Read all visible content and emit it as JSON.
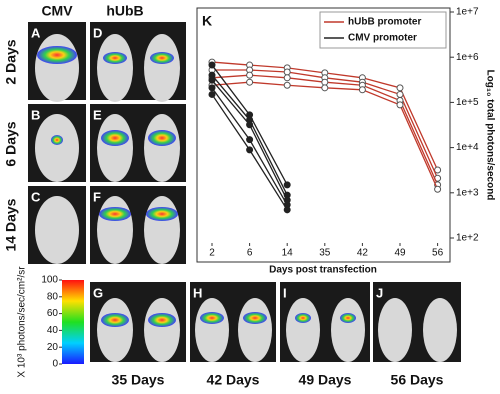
{
  "columns": [
    "CMV",
    "hUbB"
  ],
  "rows": [
    "2 Days",
    "6 Days",
    "14 Days"
  ],
  "panels": [
    "A",
    "D",
    "B",
    "E",
    "C",
    "F",
    "G",
    "H",
    "I",
    "J"
  ],
  "bottom_labels": [
    "35 Days",
    "42 Days",
    "49 Days",
    "56 Days"
  ],
  "colorbar": {
    "ticks": [
      100,
      80,
      60,
      40,
      20,
      0
    ],
    "label": "X 10³ photons/sec/cm²/sr"
  },
  "chart_data": {
    "type": "line",
    "panel": "K",
    "x_label": "Days post transfection",
    "y_label": "Log₁₀ total photons/second",
    "categories": [
      "2",
      "6",
      "14",
      "35",
      "42",
      "49",
      "56"
    ],
    "log_scale": true,
    "ylim": [
      100,
      10000000
    ],
    "yticks": [
      {
        "value": 10000000,
        "label": "1e+7"
      },
      {
        "value": 1000000,
        "label": "1e+6"
      },
      {
        "value": 100000,
        "label": "1e+5"
      },
      {
        "value": 10000,
        "label": "1e+4"
      },
      {
        "value": 1000,
        "label": "1e+3"
      },
      {
        "value": 100,
        "label": "1e+2"
      }
    ],
    "legend": "top-right",
    "series": [
      {
        "name": "hUbB promoter",
        "color": "#c0392b",
        "marker": "open",
        "values": [
          [
            780000,
            670000,
            580000,
            450000,
            350000,
            210000,
            3200
          ],
          [
            520000,
            520000,
            470000,
            350000,
            280000,
            150000,
            2100
          ],
          [
            350000,
            400000,
            350000,
            280000,
            240000,
            110000,
            1500
          ],
          [
            240000,
            280000,
            240000,
            210000,
            190000,
            88000,
            1200
          ]
        ]
      },
      {
        "name": "CMV promoter",
        "color": "#222222",
        "marker": "filled",
        "values": [
          [
            670000,
            53000,
            1500,
            null,
            null,
            null,
            null
          ],
          [
            400000,
            41000,
            890,
            null,
            null,
            null,
            null
          ],
          [
            310000,
            32000,
            690,
            null,
            null,
            null,
            null
          ],
          [
            210000,
            15000,
            540,
            null,
            null,
            null,
            null
          ],
          [
            150000,
            8900,
            420,
            null,
            null,
            null,
            null
          ]
        ]
      }
    ]
  }
}
